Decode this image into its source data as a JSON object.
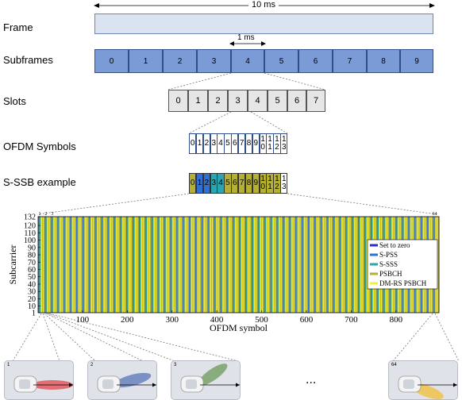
{
  "frame": {
    "label": "Frame",
    "duration": "10 ms"
  },
  "subframes": {
    "label": "Subframes",
    "duration": "1 ms",
    "items": [
      "0",
      "1",
      "2",
      "3",
      "4",
      "5",
      "6",
      "7",
      "8",
      "9"
    ]
  },
  "slots": {
    "label": "Slots",
    "items": [
      "0",
      "1",
      "2",
      "3",
      "4",
      "5",
      "6",
      "7"
    ]
  },
  "symbols": {
    "label": "OFDM Symbols",
    "items": [
      [
        "0"
      ],
      [
        "1"
      ],
      [
        "2"
      ],
      [
        "3"
      ],
      [
        "4"
      ],
      [
        "5"
      ],
      [
        "6"
      ],
      [
        "7"
      ],
      [
        "8"
      ],
      [
        "9"
      ],
      [
        "1",
        "0"
      ],
      [
        "1",
        "1"
      ],
      [
        "1",
        "2"
      ],
      [
        "1",
        "3"
      ]
    ]
  },
  "ssb": {
    "label": "S-SSB example",
    "items": [
      [
        "0"
      ],
      [
        "1"
      ],
      [
        "2"
      ],
      [
        "3"
      ],
      [
        "4"
      ],
      [
        "5"
      ],
      [
        "6"
      ],
      [
        "7"
      ],
      [
        "8"
      ],
      [
        "9"
      ],
      [
        "1",
        "0"
      ],
      [
        "1",
        "1"
      ],
      [
        "1",
        "2"
      ],
      [
        "1",
        "3"
      ]
    ],
    "roles": [
      "psbch",
      "pss",
      "pss",
      "sss",
      "sss",
      "psbch",
      "psbch",
      "psbch",
      "psbch",
      "psbch",
      "psbch",
      "psbch",
      "psbch",
      "zero"
    ]
  },
  "colors": {
    "subframe": "#7b9bd6",
    "zero": "#ffffff",
    "pss": "#2f6fd6",
    "sss": "#2aa6b0",
    "psbch": "#b5b12e",
    "dmrs": "#f4ef3c"
  },
  "chart_data": {
    "type": "heatmap",
    "title": "",
    "xlabel": "OFDM symbol",
    "ylabel": "Subcarrier",
    "xlim": [
      1,
      896
    ],
    "ylim": [
      1,
      132
    ],
    "xticks": [
      100,
      200,
      300,
      400,
      500,
      600,
      700,
      800
    ],
    "yticks": [
      1,
      10,
      20,
      30,
      40,
      50,
      60,
      70,
      80,
      90,
      100,
      110,
      120,
      132
    ],
    "top_labels": [
      {
        "text": "1",
        "x": 1
      },
      {
        "text": "2",
        "x": 15
      },
      {
        "text": "3",
        "x": 29
      },
      {
        "text": "64",
        "x": 883
      }
    ],
    "legend": {
      "placement": "right",
      "entries": [
        {
          "label": "Set to zero",
          "color": "#2b2bd6"
        },
        {
          "label": "S-PSS",
          "color": "#2f6fd6"
        },
        {
          "label": "S-SSS",
          "color": "#2aa6b0"
        },
        {
          "label": "PSBCH",
          "color": "#b5b12e"
        },
        {
          "label": "DM-RS PSBCH",
          "color": "#f4ef3c"
        }
      ]
    }
  },
  "scenarios": [
    {
      "label": "1",
      "beam_color": "#e0474c"
    },
    {
      "label": "2",
      "beam_color": "#5a74b8"
    },
    {
      "label": "3",
      "beam_color": "#6b9a5a"
    },
    {
      "label": "64",
      "beam_color": "#f0c040"
    }
  ],
  "ellipsis": "..."
}
